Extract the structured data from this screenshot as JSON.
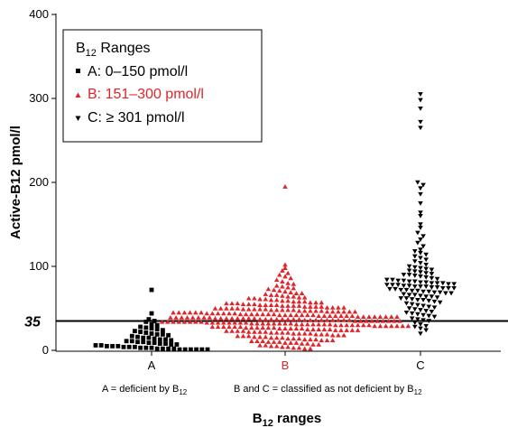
{
  "chart_data": {
    "type": "scatter",
    "ylabel": "Active-B12 pmol/l",
    "xlabel": {
      "main": "B",
      "sub": "12",
      "rest": " ranges"
    },
    "ylim": [
      0,
      400
    ],
    "yticks": [
      "0",
      "100",
      "200",
      "300",
      "400"
    ],
    "categories": [
      "A",
      "B",
      "C"
    ],
    "reference_line": {
      "value": 35,
      "label": "35"
    },
    "legend": {
      "title": {
        "main": "B",
        "sub": "12",
        "rest": " Ranges"
      },
      "placement": "top-left",
      "entries": [
        "A: 0–150 pmol/l",
        "B: 151–300 pmol/l",
        "C: ≥ 301 pmol/l"
      ]
    },
    "notes": {
      "left": {
        "main": "A = deficient by B",
        "sub": "12"
      },
      "right": {
        "main": "B and C = classified as not deficient by B",
        "sub": "12"
      }
    },
    "series": [
      {
        "category": "A",
        "marker": "square",
        "color": "#000000",
        "values": [
          72,
          44,
          37,
          35,
          34,
          31,
          30,
          28,
          27,
          26,
          25,
          24,
          23,
          22,
          21,
          20,
          19,
          19,
          18,
          17,
          16,
          15,
          15,
          14,
          13,
          13,
          12,
          11,
          11,
          10,
          10,
          9,
          9,
          8,
          8,
          7,
          7,
          6,
          6,
          5,
          5,
          5,
          4,
          4,
          4,
          3,
          3,
          3,
          2,
          2,
          2,
          2,
          1,
          1,
          1,
          1,
          1,
          1
        ]
      },
      {
        "category": "B",
        "marker": "triangle-up",
        "color": "#e0252a",
        "values": [
          195,
          102,
          98,
          95,
          92,
          90,
          88,
          86,
          84,
          82,
          80,
          79,
          77,
          76,
          75,
          74,
          73,
          72,
          71,
          70,
          69,
          68,
          68,
          67,
          66,
          66,
          65,
          64,
          64,
          63,
          63,
          62,
          62,
          61,
          61,
          60,
          60,
          59,
          59,
          58,
          58,
          58,
          57,
          57,
          57,
          56,
          56,
          56,
          55,
          55,
          55,
          54,
          54,
          54,
          54,
          53,
          53,
          53,
          53,
          52,
          52,
          52,
          52,
          51,
          51,
          51,
          51,
          50,
          50,
          50,
          50,
          50,
          49,
          49,
          49,
          49,
          49,
          48,
          48,
          48,
          48,
          48,
          47,
          47,
          47,
          47,
          47,
          46,
          46,
          46,
          46,
          46,
          46,
          45,
          45,
          45,
          45,
          45,
          45,
          44,
          44,
          44,
          44,
          44,
          44,
          43,
          43,
          43,
          43,
          43,
          43,
          43,
          42,
          42,
          42,
          42,
          42,
          42,
          42,
          41,
          41,
          41,
          41,
          41,
          41,
          41,
          40,
          40,
          40,
          40,
          40,
          40,
          40,
          40,
          39,
          39,
          39,
          39,
          39,
          39,
          39,
          39,
          38,
          38,
          38,
          38,
          38,
          38,
          38,
          38,
          37,
          37,
          37,
          37,
          37,
          37,
          37,
          37,
          36,
          36,
          36,
          36,
          36,
          36,
          36,
          36,
          36,
          35,
          35,
          35,
          35,
          35,
          35,
          35,
          35,
          35,
          34,
          34,
          34,
          34,
          34,
          34,
          34,
          34,
          33,
          33,
          33,
          33,
          33,
          33,
          33,
          33,
          32,
          32,
          32,
          32,
          32,
          32,
          32,
          32,
          31,
          31,
          31,
          31,
          31,
          31,
          31,
          30,
          30,
          30,
          30,
          30,
          30,
          30,
          29,
          29,
          29,
          29,
          29,
          29,
          29,
          28,
          28,
          28,
          28,
          28,
          28,
          27,
          27,
          27,
          27,
          27,
          27,
          26,
          26,
          26,
          26,
          26,
          25,
          25,
          25,
          25,
          25,
          24,
          24,
          24,
          24,
          24,
          23,
          23,
          23,
          23,
          22,
          22,
          22,
          22,
          21,
          21,
          21,
          21,
          20,
          20,
          20,
          20,
          19,
          19,
          19,
          18,
          18,
          18,
          17,
          17,
          17,
          16,
          16,
          16,
          15,
          15,
          15,
          14,
          14,
          14,
          13,
          13,
          13,
          12,
          12,
          12,
          11,
          11,
          11,
          10,
          10,
          10,
          9,
          9,
          9,
          8,
          8,
          7,
          7,
          6,
          6,
          5,
          5,
          4,
          4,
          3,
          3,
          2,
          2
        ]
      },
      {
        "category": "C",
        "marker": "triangle-down",
        "color": "#000000",
        "values": [
          305,
          298,
          288,
          272,
          265,
          200,
          197,
          193,
          186,
          175,
          164,
          160,
          150,
          146,
          140,
          136,
          132,
          128,
          124,
          120,
          118,
          116,
          114,
          112,
          110,
          108,
          106,
          104,
          102,
          100,
          99,
          98,
          97,
          96,
          95,
          94,
          93,
          92,
          91,
          90,
          90,
          89,
          88,
          87,
          86,
          85,
          84,
          84,
          83,
          83,
          82,
          82,
          81,
          81,
          80,
          80,
          80,
          79,
          79,
          78,
          78,
          78,
          77,
          77,
          76,
          76,
          76,
          75,
          75,
          74,
          74,
          74,
          73,
          73,
          72,
          72,
          71,
          71,
          70,
          70,
          69,
          69,
          68,
          68,
          67,
          66,
          66,
          65,
          64,
          64,
          63,
          62,
          62,
          61,
          60,
          60,
          59,
          58,
          57,
          56,
          55,
          54,
          53,
          52,
          51,
          50,
          49,
          48,
          47,
          46,
          45,
          44,
          43,
          42,
          41,
          40,
          38,
          37,
          36,
          35,
          33,
          31,
          29,
          28,
          26,
          24,
          20
        ]
      }
    ]
  }
}
